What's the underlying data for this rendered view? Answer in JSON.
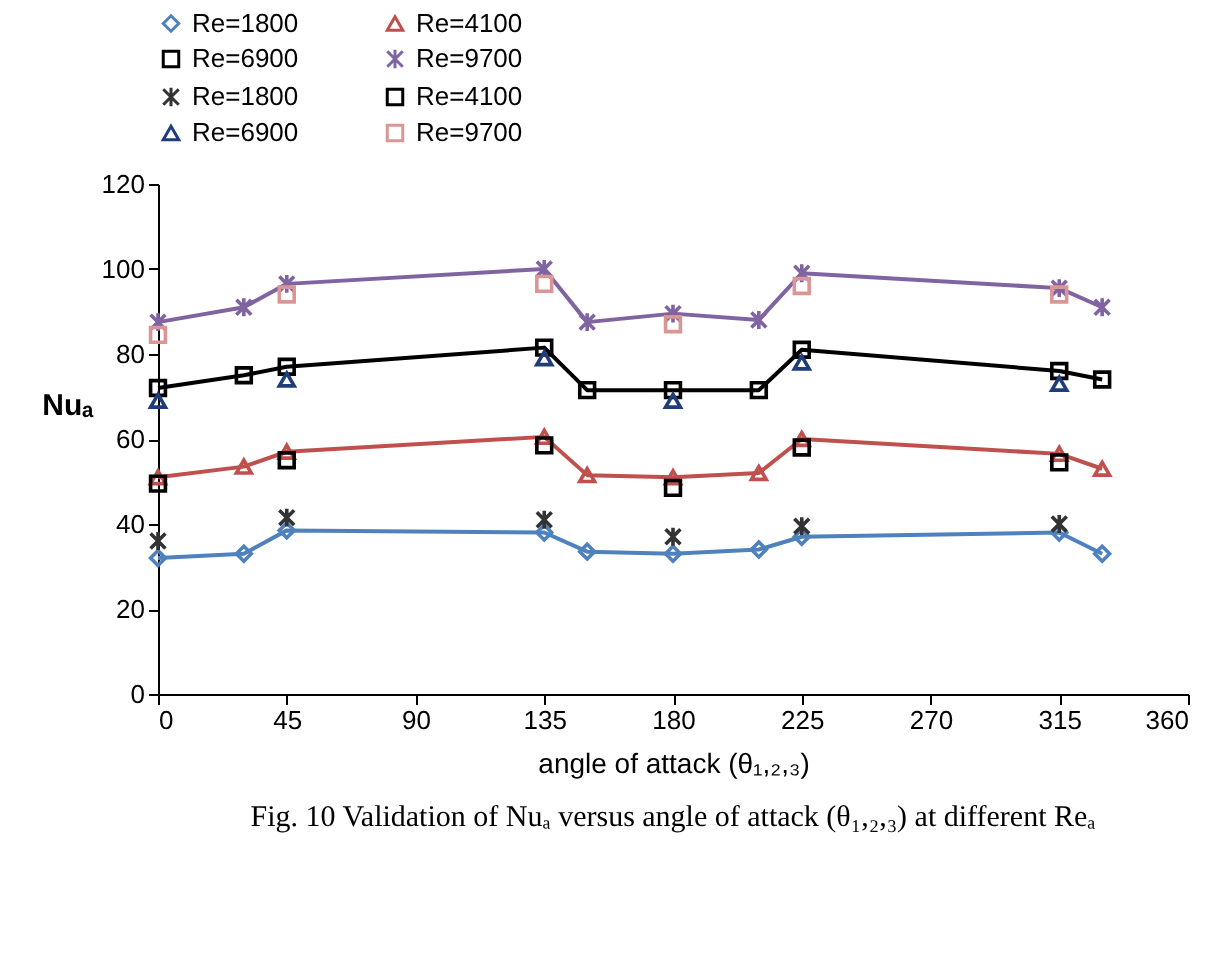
{
  "chart_data": {
    "type": "line",
    "xlabel": "angle of attack (θ₁,₂,₃)",
    "ylabel": "Nuₐ",
    "annotations": [
      "Fig. 10 Validation of Nuₐ versus angle of attack (θ₁,₂,₃) at different Reₐ"
    ],
    "xlim": [
      0,
      360
    ],
    "xticks": [
      0,
      45,
      90,
      135,
      180,
      225,
      270,
      315,
      360
    ],
    "ylim": [
      0,
      120
    ],
    "yticks": [
      0,
      20,
      40,
      60,
      80,
      100,
      120
    ],
    "grid": false,
    "legend": "top",
    "series": [
      {
        "name": "Re=1800",
        "marker": "diamond",
        "color": "#4f81bd",
        "x": [
          0,
          30,
          45,
          135,
          150,
          180,
          210,
          225,
          315,
          330
        ],
        "values": [
          32,
          33,
          38.5,
          38,
          33.5,
          33,
          34,
          37,
          38,
          33
        ]
      },
      {
        "name": "Re=4100",
        "marker": "triangle",
        "color": "#c0504d",
        "x": [
          0,
          30,
          45,
          135,
          150,
          180,
          210,
          225,
          315,
          330
        ],
        "values": [
          51,
          53.5,
          57,
          60.5,
          51.5,
          51,
          52,
          60,
          56.5,
          53
        ]
      },
      {
        "name": "Re=6900",
        "marker": "square",
        "color": "#000000",
        "x": [
          0,
          30,
          45,
          135,
          150,
          180,
          210,
          225,
          315,
          330
        ],
        "values": [
          72,
          75,
          77,
          81.5,
          71.5,
          71.5,
          71.5,
          81,
          76,
          74
        ]
      },
      {
        "name": "Re=9700",
        "marker": "cross",
        "color": "#8064a2",
        "x": [
          0,
          30,
          45,
          135,
          150,
          180,
          210,
          225,
          315,
          330
        ],
        "values": [
          87.5,
          91,
          96.5,
          100,
          87.5,
          89.5,
          88,
          99,
          95.5,
          91
        ]
      },
      {
        "name": "Re=1800",
        "type": "scatter",
        "marker": "cross",
        "color": "#333333",
        "x": [
          0,
          45,
          135,
          180,
          225,
          315
        ],
        "values": [
          36,
          41.5,
          41,
          37,
          39.5,
          40
        ]
      },
      {
        "name": "Re=4100",
        "type": "scatter",
        "marker": "square",
        "color": "#000000",
        "x": [
          0,
          45,
          135,
          180,
          225,
          315
        ],
        "values": [
          49.5,
          55,
          58.5,
          48.5,
          58,
          54.5
        ]
      },
      {
        "name": "Re=6900",
        "type": "scatter",
        "marker": "triangle",
        "color": "#1f3d7a",
        "x": [
          0,
          45,
          135,
          180,
          225,
          315
        ],
        "values": [
          69,
          74,
          79,
          69,
          78,
          73
        ]
      },
      {
        "name": "Re=9700",
        "type": "scatter",
        "marker": "square",
        "color": "#d99694",
        "x": [
          0,
          45,
          135,
          180,
          225,
          315
        ],
        "values": [
          84.5,
          94,
          96.5,
          87,
          96,
          94
        ]
      }
    ]
  }
}
